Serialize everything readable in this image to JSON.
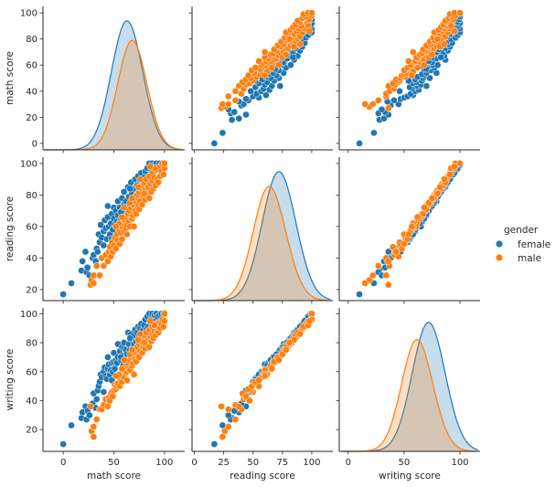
{
  "chart_data": {
    "type": "scatter",
    "title": "",
    "kind": "pairplot",
    "variables": [
      "math score",
      "reading score",
      "writing score"
    ],
    "hue": "gender",
    "legend": {
      "title": "gender",
      "placement": "right",
      "entries": [
        {
          "label": "female",
          "color": "#1f77b4"
        },
        {
          "label": "male",
          "color": "#ff7f0e"
        }
      ]
    },
    "axes": {
      "math score": {
        "lim": [
          -20,
          120
        ],
        "ticks": [
          0,
          50,
          100
        ],
        "row_lim": [
          -5,
          105
        ],
        "row_ticks": [
          0,
          20,
          40,
          60,
          80,
          100
        ]
      },
      "reading score": {
        "lim": [
          -2,
          118
        ],
        "ticks": [
          0,
          25,
          50,
          75,
          100
        ],
        "row_lim": [
          13,
          104
        ],
        "row_ticks": [
          20,
          40,
          60,
          80,
          100
        ]
      },
      "writing score": {
        "lim": [
          -8,
          118
        ],
        "ticks": [
          0,
          50,
          100
        ],
        "row_lim": [
          5,
          104
        ],
        "row_ticks": [
          20,
          40,
          60,
          80,
          100
        ]
      }
    },
    "diagonal": {
      "type": "kde",
      "series": [
        {
          "name": "female",
          "variable": "math score",
          "mean": 63.6,
          "sd": 15.5,
          "peak_rel": 1.0
        },
        {
          "name": "male",
          "variable": "math score",
          "mean": 68.7,
          "sd": 14.4,
          "peak_rel": 0.85
        },
        {
          "name": "female",
          "variable": "reading score",
          "mean": 72.6,
          "sd": 14.4,
          "peak_rel": 1.0
        },
        {
          "name": "male",
          "variable": "reading score",
          "mean": 65.5,
          "sd": 14.0,
          "peak_rel": 0.88
        },
        {
          "name": "female",
          "variable": "writing score",
          "mean": 72.5,
          "sd": 14.8,
          "peak_rel": 1.0
        },
        {
          "name": "male",
          "variable": "writing score",
          "mean": 63.3,
          "sd": 14.1,
          "peak_rel": 0.86
        }
      ]
    },
    "series": [
      {
        "name": "female",
        "points": [
          [
            0,
            17,
            10
          ],
          [
            8,
            24,
            23
          ],
          [
            18,
            32,
            28
          ],
          [
            19,
            38,
            32
          ],
          [
            22,
            44,
            36
          ],
          [
            23,
            31,
            27
          ],
          [
            24,
            34,
            33
          ],
          [
            26,
            29,
            30
          ],
          [
            29,
            40,
            38
          ],
          [
            30,
            42,
            45
          ],
          [
            32,
            38,
            35
          ],
          [
            33,
            46,
            41
          ],
          [
            34,
            44,
            47
          ],
          [
            35,
            55,
            50
          ],
          [
            36,
            50,
            53
          ],
          [
            37,
            61,
            58
          ],
          [
            38,
            53,
            56
          ],
          [
            40,
            57,
            60
          ],
          [
            40,
            48,
            46
          ],
          [
            41,
            64,
            63
          ],
          [
            42,
            59,
            57
          ],
          [
            43,
            52,
            55
          ],
          [
            44,
            66,
            62
          ],
          [
            44,
            73,
            70
          ],
          [
            45,
            60,
            65
          ],
          [
            46,
            55,
            58
          ],
          [
            47,
            62,
            61
          ],
          [
            48,
            68,
            66
          ],
          [
            49,
            58,
            60
          ],
          [
            50,
            65,
            67
          ],
          [
            50,
            72,
            73
          ],
          [
            51,
            61,
            62
          ],
          [
            52,
            70,
            68
          ],
          [
            53,
            63,
            66
          ],
          [
            54,
            76,
            79
          ],
          [
            54,
            67,
            70
          ],
          [
            55,
            58,
            57
          ],
          [
            56,
            72,
            74
          ],
          [
            57,
            65,
            68
          ],
          [
            58,
            78,
            77
          ],
          [
            58,
            70,
            71
          ],
          [
            59,
            62,
            64
          ],
          [
            60,
            74,
            76
          ],
          [
            60,
            82,
            80
          ],
          [
            61,
            68,
            69
          ],
          [
            62,
            76,
            75
          ],
          [
            63,
            72,
            72
          ],
          [
            64,
            85,
            87
          ],
          [
            64,
            66,
            66
          ],
          [
            65,
            79,
            79
          ],
          [
            66,
            73,
            75
          ],
          [
            67,
            88,
            86
          ],
          [
            67,
            70,
            72
          ],
          [
            68,
            81,
            82
          ],
          [
            69,
            75,
            77
          ],
          [
            70,
            84,
            85
          ],
          [
            70,
            78,
            79
          ],
          [
            71,
            90,
            89
          ],
          [
            72,
            80,
            81
          ],
          [
            73,
            86,
            87
          ],
          [
            73,
            76,
            77
          ],
          [
            74,
            92,
            91
          ],
          [
            75,
            83,
            84
          ],
          [
            76,
            89,
            90
          ],
          [
            76,
            79,
            80
          ],
          [
            77,
            94,
            93
          ],
          [
            78,
            87,
            88
          ],
          [
            79,
            82,
            83
          ],
          [
            80,
            91,
            92
          ],
          [
            81,
            95,
            96
          ],
          [
            82,
            88,
            89
          ],
          [
            83,
            97,
            98
          ],
          [
            84,
            90,
            91
          ],
          [
            85,
            100,
            100
          ],
          [
            86,
            93,
            94
          ],
          [
            87,
            96,
            97
          ],
          [
            88,
            100,
            100
          ],
          [
            89,
            94,
            95
          ],
          [
            90,
            99,
            99
          ],
          [
            92,
            100,
            100
          ],
          [
            93,
            97,
            98
          ],
          [
            95,
            100,
            99
          ],
          [
            97,
            99,
            100
          ],
          [
            99,
            100,
            100
          ],
          [
            100,
            100,
            100
          ],
          [
            62,
            60,
            61
          ],
          [
            57,
            69,
            70
          ],
          [
            48,
            52,
            54
          ],
          [
            66,
            84,
            83
          ],
          [
            71,
            68,
            70
          ]
        ]
      },
      {
        "name": "male",
        "points": [
          [
            27,
            23,
            36
          ],
          [
            28,
            26,
            19
          ],
          [
            30,
            24,
            15
          ],
          [
            30,
            29,
            22
          ],
          [
            33,
            35,
            27
          ],
          [
            36,
            29,
            34
          ],
          [
            38,
            40,
            34
          ],
          [
            40,
            35,
            37
          ],
          [
            42,
            42,
            41
          ],
          [
            44,
            38,
            36
          ],
          [
            45,
            44,
            42
          ],
          [
            46,
            47,
            40
          ],
          [
            47,
            41,
            45
          ],
          [
            48,
            50,
            46
          ],
          [
            49,
            44,
            43
          ],
          [
            50,
            48,
            47
          ],
          [
            51,
            53,
            51
          ],
          [
            52,
            46,
            48
          ],
          [
            53,
            55,
            50
          ],
          [
            54,
            51,
            52
          ],
          [
            55,
            58,
            56
          ],
          [
            56,
            49,
            50
          ],
          [
            57,
            56,
            55
          ],
          [
            58,
            60,
            58
          ],
          [
            58,
            52,
            53
          ],
          [
            59,
            62,
            60
          ],
          [
            60,
            57,
            56
          ],
          [
            61,
            64,
            62
          ],
          [
            62,
            59,
            59
          ],
          [
            62,
            66,
            64
          ],
          [
            63,
            61,
            60
          ],
          [
            64,
            68,
            66
          ],
          [
            65,
            63,
            62
          ],
          [
            65,
            70,
            68
          ],
          [
            66,
            60,
            61
          ],
          [
            67,
            72,
            70
          ],
          [
            68,
            65,
            64
          ],
          [
            69,
            74,
            71
          ],
          [
            69,
            67,
            66
          ],
          [
            70,
            76,
            73
          ],
          [
            71,
            70,
            69
          ],
          [
            72,
            78,
            76
          ],
          [
            72,
            68,
            67
          ],
          [
            73,
            80,
            77
          ],
          [
            74,
            73,
            71
          ],
          [
            75,
            82,
            79
          ],
          [
            75,
            71,
            70
          ],
          [
            76,
            76,
            74
          ],
          [
            77,
            84,
            81
          ],
          [
            78,
            74,
            73
          ],
          [
            78,
            86,
            83
          ],
          [
            79,
            79,
            77
          ],
          [
            80,
            88,
            85
          ],
          [
            81,
            77,
            76
          ],
          [
            81,
            83,
            80
          ],
          [
            82,
            90,
            87
          ],
          [
            83,
            80,
            79
          ],
          [
            84,
            85,
            82
          ],
          [
            85,
            92,
            89
          ],
          [
            85,
            78,
            77
          ],
          [
            86,
            87,
            84
          ],
          [
            87,
            82,
            81
          ],
          [
            88,
            94,
            91
          ],
          [
            88,
            89,
            86
          ],
          [
            89,
            84,
            83
          ],
          [
            90,
            91,
            88
          ],
          [
            91,
            86,
            85
          ],
          [
            92,
            96,
            93
          ],
          [
            93,
            90,
            88
          ],
          [
            94,
            88,
            87
          ],
          [
            95,
            98,
            94
          ],
          [
            96,
            92,
            90
          ],
          [
            97,
            95,
            93
          ],
          [
            98,
            100,
            96
          ],
          [
            99,
            93,
            91
          ],
          [
            100,
            97,
            95
          ],
          [
            100,
            100,
            100
          ],
          [
            60,
            72,
            68
          ],
          [
            55,
            62,
            58
          ],
          [
            66,
            75,
            72
          ],
          [
            74,
            85,
            82
          ],
          [
            80,
            81,
            80
          ],
          [
            70,
            60,
            58
          ],
          [
            63,
            55,
            54
          ],
          [
            58,
            66,
            62
          ],
          [
            90,
            97,
            92
          ],
          [
            86,
            98,
            95
          ],
          [
            76,
            90,
            86
          ],
          [
            68,
            78,
            75
          ],
          [
            52,
            60,
            57
          ]
        ]
      }
    ]
  }
}
